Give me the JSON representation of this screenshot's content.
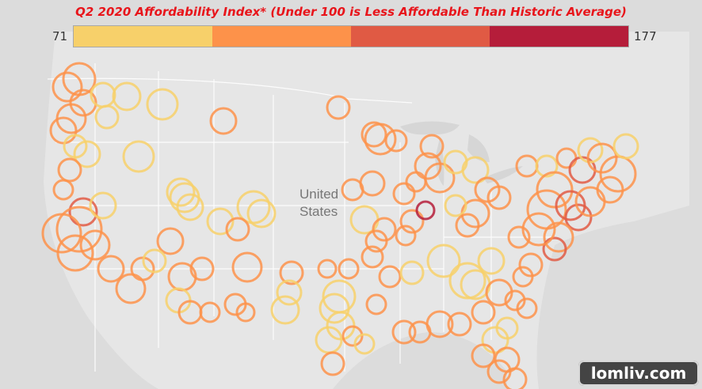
{
  "title": "Q2 2020 Affordability Index* (Under 100 is Less Affordable Than Historic Average)",
  "legend": {
    "min_label": "71",
    "max_label": "177",
    "colors": [
      "#f7d06a",
      "#fd924a",
      "#e05a44",
      "#b51d3a"
    ]
  },
  "map": {
    "country_label_line1": "United",
    "country_label_line2": "States",
    "land_color": "#e6e6e6",
    "water_color": "#dcdcdc",
    "border_color": "#ffffff"
  },
  "watermark": "lomliv.com"
}
